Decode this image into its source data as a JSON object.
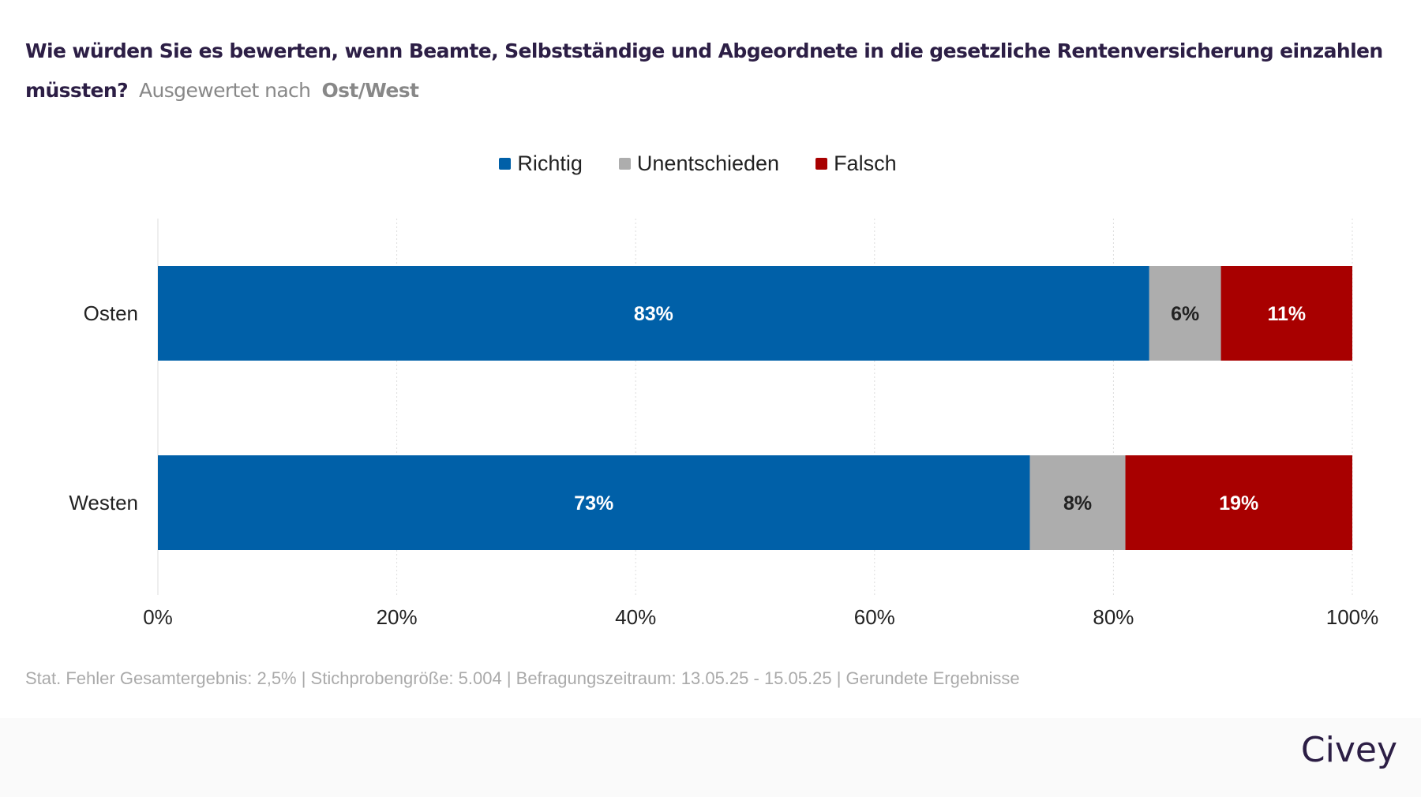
{
  "header": {
    "title": "Wie würden Sie es bewerten, wenn Beamte, Selbstständige und Abgeordnete in die gesetzliche Rentenversicherung einzahlen müssten?",
    "subtitle": "Ausgewertet nach",
    "group": "Ost/West"
  },
  "chart_data": {
    "type": "bar",
    "orientation": "horizontal",
    "stacked": true,
    "categories": [
      "Osten",
      "Westen"
    ],
    "series": [
      {
        "name": "Richtig",
        "color": "#0060a8",
        "values": [
          83,
          73
        ],
        "labels": [
          "83%",
          "73%"
        ]
      },
      {
        "name": "Unentschieden",
        "color": "#adadad",
        "values": [
          6,
          8
        ],
        "labels": [
          "6%",
          "8%"
        ]
      },
      {
        "name": "Falsch",
        "color": "#a80000",
        "values": [
          11,
          19
        ],
        "labels": [
          "11%",
          "19%"
        ]
      }
    ],
    "xlim": [
      0,
      100
    ],
    "xticks": [
      "0%",
      "20%",
      "40%",
      "60%",
      "80%",
      "100%"
    ],
    "grid": true,
    "legend": "top-center"
  },
  "footer": {
    "note": "Stat. Fehler Gesamtergebnis: 2,5% | Stichprobengröße: 5.004 | Befragungszeitraum: 13.05.25 - 15.05.25 | Gerundete Ergebnisse",
    "logo": "Civey"
  }
}
